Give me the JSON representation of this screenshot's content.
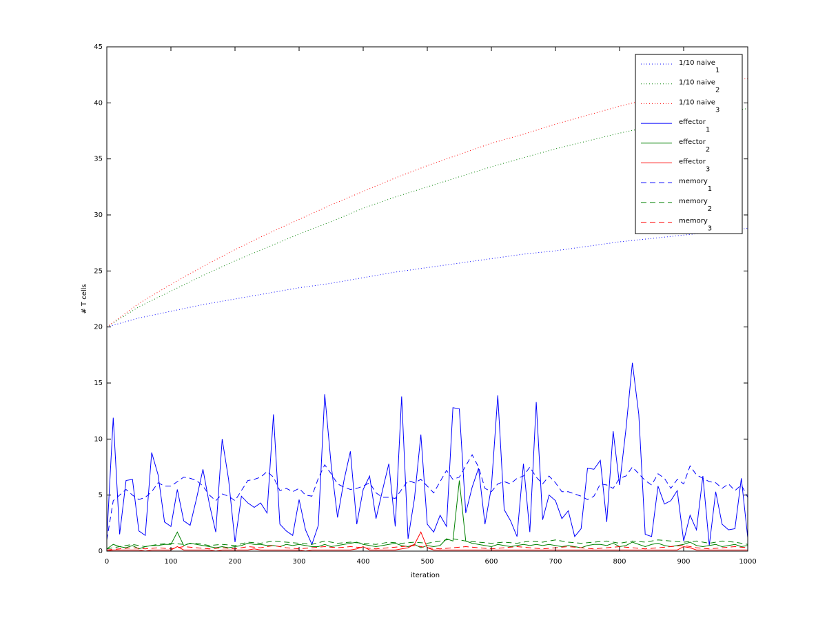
{
  "chart_data": {
    "type": "line",
    "xlabel": "iteration",
    "ylabel": "# T cells",
    "xlim": [
      0,
      1000
    ],
    "ylim": [
      0,
      45
    ],
    "xticks": [
      0,
      100,
      200,
      300,
      400,
      500,
      600,
      700,
      800,
      900,
      1000
    ],
    "yticks": [
      0,
      5,
      10,
      15,
      20,
      25,
      30,
      35,
      40,
      45
    ],
    "legend": "northeast",
    "x": [
      0,
      10,
      20,
      30,
      40,
      50,
      60,
      70,
      80,
      90,
      100,
      110,
      120,
      130,
      140,
      150,
      160,
      170,
      180,
      190,
      200,
      210,
      220,
      230,
      240,
      250,
      260,
      270,
      280,
      290,
      300,
      310,
      320,
      330,
      340,
      350,
      360,
      370,
      380,
      390,
      400,
      410,
      420,
      430,
      440,
      450,
      460,
      470,
      480,
      490,
      500,
      510,
      520,
      530,
      540,
      550,
      560,
      570,
      580,
      590,
      600,
      610,
      620,
      630,
      640,
      650,
      660,
      670,
      680,
      690,
      700,
      710,
      720,
      730,
      740,
      750,
      760,
      770,
      780,
      790,
      800,
      810,
      820,
      830,
      840,
      850,
      860,
      870,
      880,
      890,
      900,
      910,
      920,
      930,
      940,
      950,
      960,
      970,
      980,
      990,
      1000
    ],
    "series": [
      {
        "name": "1/10 naive",
        "name_sub": "1",
        "color": "#0000ff",
        "style": "dotted",
        "x": [
          0,
          50,
          100,
          150,
          200,
          250,
          300,
          350,
          400,
          450,
          500,
          550,
          600,
          650,
          700,
          750,
          800,
          850,
          900,
          950,
          1000
        ],
        "values": [
          20,
          20.8,
          21.4,
          22.0,
          22.5,
          23.0,
          23.5,
          23.9,
          24.4,
          24.9,
          25.3,
          25.7,
          26.1,
          26.5,
          26.8,
          27.2,
          27.6,
          27.9,
          28.2,
          28.5,
          28.8
        ]
      },
      {
        "name": "1/10 naive",
        "name_sub": "2",
        "color": "#008000",
        "style": "dotted",
        "x": [
          0,
          50,
          100,
          150,
          200,
          250,
          300,
          350,
          400,
          450,
          500,
          550,
          600,
          650,
          700,
          750,
          800,
          850,
          900,
          950,
          1000
        ],
        "values": [
          20,
          21.8,
          23.2,
          24.6,
          25.9,
          27.1,
          28.3,
          29.4,
          30.6,
          31.6,
          32.5,
          33.4,
          34.3,
          35.1,
          35.9,
          36.6,
          37.3,
          37.9,
          38.5,
          39.0,
          39.5
        ]
      },
      {
        "name": "1/10 naive",
        "name_sub": "3",
        "color": "#ff0000",
        "style": "dotted",
        "x": [
          0,
          50,
          100,
          150,
          200,
          250,
          300,
          350,
          400,
          450,
          500,
          550,
          600,
          650,
          700,
          750,
          800,
          850,
          900,
          950,
          1000
        ],
        "values": [
          20,
          22.1,
          23.8,
          25.4,
          26.9,
          28.3,
          29.6,
          30.9,
          32.1,
          33.3,
          34.4,
          35.4,
          36.4,
          37.2,
          38.1,
          38.9,
          39.7,
          40.4,
          41.0,
          41.6,
          42.2
        ]
      },
      {
        "name": "effector",
        "name_sub": "1",
        "color": "#0000ff",
        "style": "solid",
        "values": [
          1.2,
          11.9,
          1.5,
          6.3,
          6.4,
          1.8,
          1.4,
          8.8,
          6.8,
          2.6,
          2.2,
          5.5,
          2.7,
          2.3,
          4.7,
          7.3,
          4.2,
          1.7,
          10.0,
          6.4,
          0.8,
          4.9,
          4.3,
          3.9,
          4.3,
          3.4,
          12.2,
          2.4,
          1.8,
          1.4,
          4.6,
          1.9,
          0.6,
          2.3,
          14.0,
          7.7,
          3.0,
          6.3,
          8.9,
          2.4,
          5.5,
          6.7,
          2.9,
          5.4,
          7.8,
          2.2,
          13.8,
          1.1,
          4.7,
          10.4,
          2.4,
          1.7,
          3.2,
          2.2,
          12.8,
          12.7,
          3.4,
          5.7,
          7.4,
          2.4,
          5.7,
          13.9,
          3.7,
          2.7,
          1.3,
          7.8,
          1.7,
          13.3,
          2.8,
          5.0,
          4.5,
          2.9,
          3.6,
          1.3,
          2.0,
          7.4,
          7.3,
          8.1,
          2.6,
          10.7,
          5.9,
          10.9,
          16.8,
          12.2,
          1.5,
          1.3,
          5.8,
          4.2,
          4.5,
          5.4,
          0.9,
          3.2,
          1.9,
          6.7,
          0.5,
          5.3,
          2.4,
          1.9,
          2.0,
          6.5,
          1.2
        ]
      },
      {
        "name": "effector",
        "name_sub": "2",
        "color": "#008000",
        "style": "solid",
        "values": [
          0.2,
          0.6,
          0.4,
          0.3,
          0.5,
          0.2,
          0.4,
          0.5,
          0.5,
          0.6,
          0.6,
          1.7,
          0.5,
          0.7,
          0.6,
          0.5,
          0.4,
          0.3,
          0.4,
          0.3,
          0.4,
          0.5,
          0.7,
          0.6,
          0.6,
          0.5,
          0.5,
          0.4,
          0.6,
          0.5,
          0.6,
          0.5,
          0.4,
          0.4,
          0.6,
          0.4,
          0.5,
          0.6,
          0.7,
          0.8,
          0.6,
          0.5,
          0.4,
          0.5,
          0.6,
          0.7,
          0.5,
          0.4,
          0.6,
          0.3,
          0.5,
          0.4,
          0.5,
          1.1,
          0.9,
          6.3,
          0.9,
          0.7,
          0.6,
          0.5,
          0.4,
          0.6,
          0.5,
          0.4,
          0.5,
          0.6,
          0.5,
          0.6,
          0.5,
          0.6,
          0.5,
          0.4,
          0.5,
          0.4,
          0.3,
          0.5,
          0.6,
          0.6,
          0.5,
          0.7,
          0.4,
          0.5,
          0.8,
          0.6,
          0.4,
          0.6,
          0.7,
          0.5,
          0.4,
          0.5,
          0.6,
          0.8,
          0.5,
          0.4,
          0.5,
          0.6,
          0.4,
          0.5,
          0.6,
          0.4,
          0.5
        ]
      },
      {
        "name": "effector",
        "name_sub": "3",
        "color": "#ff0000",
        "style": "solid",
        "values": [
          0.0,
          0.1,
          0.1,
          0.1,
          0.1,
          0.1,
          0.0,
          0.1,
          0.1,
          0.1,
          0.1,
          0.4,
          0.1,
          0.1,
          0.1,
          0.1,
          0.1,
          0.0,
          0.1,
          0.1,
          0.1,
          0.1,
          0.1,
          0.2,
          0.1,
          0.1,
          0.1,
          0.1,
          0.1,
          0.1,
          0.1,
          0.0,
          0.1,
          0.1,
          0.1,
          0.1,
          0.1,
          0.1,
          0.1,
          0.2,
          0.4,
          0.1,
          0.1,
          0.1,
          0.1,
          0.1,
          0.2,
          0.3,
          0.6,
          1.7,
          0.3,
          0.1,
          0.1,
          0.1,
          0.1,
          0.1,
          0.1,
          0.1,
          0.1,
          0.1,
          0.1,
          0.1,
          0.1,
          0.1,
          0.1,
          0.1,
          0.1,
          0.1,
          0.1,
          0.1,
          0.1,
          0.1,
          0.1,
          0.1,
          0.1,
          0.1,
          0.1,
          0.1,
          0.1,
          0.1,
          0.1,
          0.1,
          0.1,
          0.1,
          0.1,
          0.1,
          0.1,
          0.1,
          0.1,
          0.1,
          0.4,
          0.3,
          0.1,
          0.1,
          0.1,
          0.1,
          0.1,
          0.1,
          0.1,
          0.1,
          0.1
        ]
      },
      {
        "name": "memory",
        "name_sub": "1",
        "color": "#0000ff",
        "style": "dashed",
        "values": [
          1.0,
          4.5,
          5.0,
          5.5,
          5.0,
          4.6,
          4.8,
          5.3,
          6.1,
          5.8,
          5.8,
          6.2,
          6.6,
          6.5,
          6.3,
          5.8,
          5.0,
          4.5,
          5.1,
          4.9,
          4.5,
          5.4,
          6.3,
          6.4,
          6.6,
          7.1,
          6.6,
          5.4,
          5.6,
          5.3,
          5.6,
          5.0,
          4.9,
          6.5,
          7.7,
          6.9,
          6.0,
          5.7,
          5.5,
          5.6,
          5.8,
          6.1,
          5.2,
          4.8,
          4.8,
          4.7,
          5.5,
          6.3,
          6.1,
          6.4,
          5.8,
          5.2,
          6.2,
          7.2,
          6.4,
          6.6,
          7.6,
          8.6,
          7.5,
          5.6,
          5.3,
          6.0,
          6.2,
          6.0,
          6.5,
          6.7,
          7.5,
          6.6,
          6.0,
          6.7,
          6.1,
          5.3,
          5.3,
          5.1,
          4.9,
          4.6,
          4.9,
          6.0,
          5.9,
          5.6,
          6.5,
          6.7,
          7.5,
          6.9,
          6.3,
          5.9,
          6.9,
          6.5,
          5.6,
          6.4,
          6.0,
          7.6,
          6.8,
          6.5,
          6.2,
          6.1,
          5.6,
          6.0,
          5.4,
          5.9,
          4.8
        ]
      },
      {
        "name": "memory",
        "name_sub": "2",
        "color": "#008000",
        "style": "dashed",
        "x": [
          0,
          20,
          40,
          60,
          80,
          100,
          120,
          140,
          160,
          180,
          200,
          220,
          240,
          260,
          280,
          300,
          320,
          340,
          360,
          380,
          400,
          420,
          440,
          460,
          480,
          500,
          520,
          540,
          560,
          580,
          600,
          620,
          640,
          660,
          680,
          700,
          720,
          740,
          760,
          780,
          800,
          820,
          840,
          860,
          880,
          900,
          920,
          940,
          960,
          980,
          1000
        ],
        "values": [
          0.2,
          0.4,
          0.6,
          0.4,
          0.6,
          0.7,
          0.6,
          0.7,
          0.5,
          0.6,
          0.5,
          0.8,
          0.7,
          0.9,
          0.8,
          0.7,
          0.6,
          0.9,
          0.7,
          0.8,
          0.7,
          0.6,
          0.8,
          0.7,
          0.8,
          0.7,
          0.9,
          1.1,
          0.9,
          0.8,
          0.7,
          0.8,
          0.7,
          0.9,
          0.8,
          1.0,
          0.8,
          0.7,
          0.8,
          0.9,
          0.7,
          0.9,
          0.8,
          1.0,
          0.9,
          0.8,
          0.9,
          0.7,
          0.9,
          0.8,
          0.6
        ]
      },
      {
        "name": "memory",
        "name_sub": "3",
        "color": "#ff0000",
        "style": "dashed",
        "x": [
          0,
          20,
          40,
          60,
          80,
          100,
          120,
          140,
          160,
          180,
          200,
          220,
          240,
          260,
          280,
          300,
          320,
          340,
          360,
          380,
          400,
          420,
          440,
          460,
          480,
          500,
          520,
          540,
          560,
          580,
          600,
          620,
          640,
          660,
          680,
          700,
          720,
          740,
          760,
          780,
          800,
          820,
          840,
          860,
          880,
          900,
          920,
          940,
          960,
          980,
          1000
        ],
        "values": [
          0.1,
          0.2,
          0.3,
          0.2,
          0.3,
          0.2,
          0.4,
          0.3,
          0.2,
          0.3,
          0.2,
          0.4,
          0.3,
          0.5,
          0.3,
          0.2,
          0.3,
          0.4,
          0.3,
          0.4,
          0.3,
          0.2,
          0.3,
          0.4,
          0.5,
          0.3,
          0.2,
          0.3,
          0.4,
          0.3,
          0.2,
          0.3,
          0.4,
          0.3,
          0.2,
          0.3,
          0.4,
          0.3,
          0.2,
          0.3,
          0.4,
          0.3,
          0.2,
          0.3,
          0.4,
          0.5,
          0.3,
          0.2,
          0.3,
          0.4,
          0.3
        ]
      }
    ]
  }
}
